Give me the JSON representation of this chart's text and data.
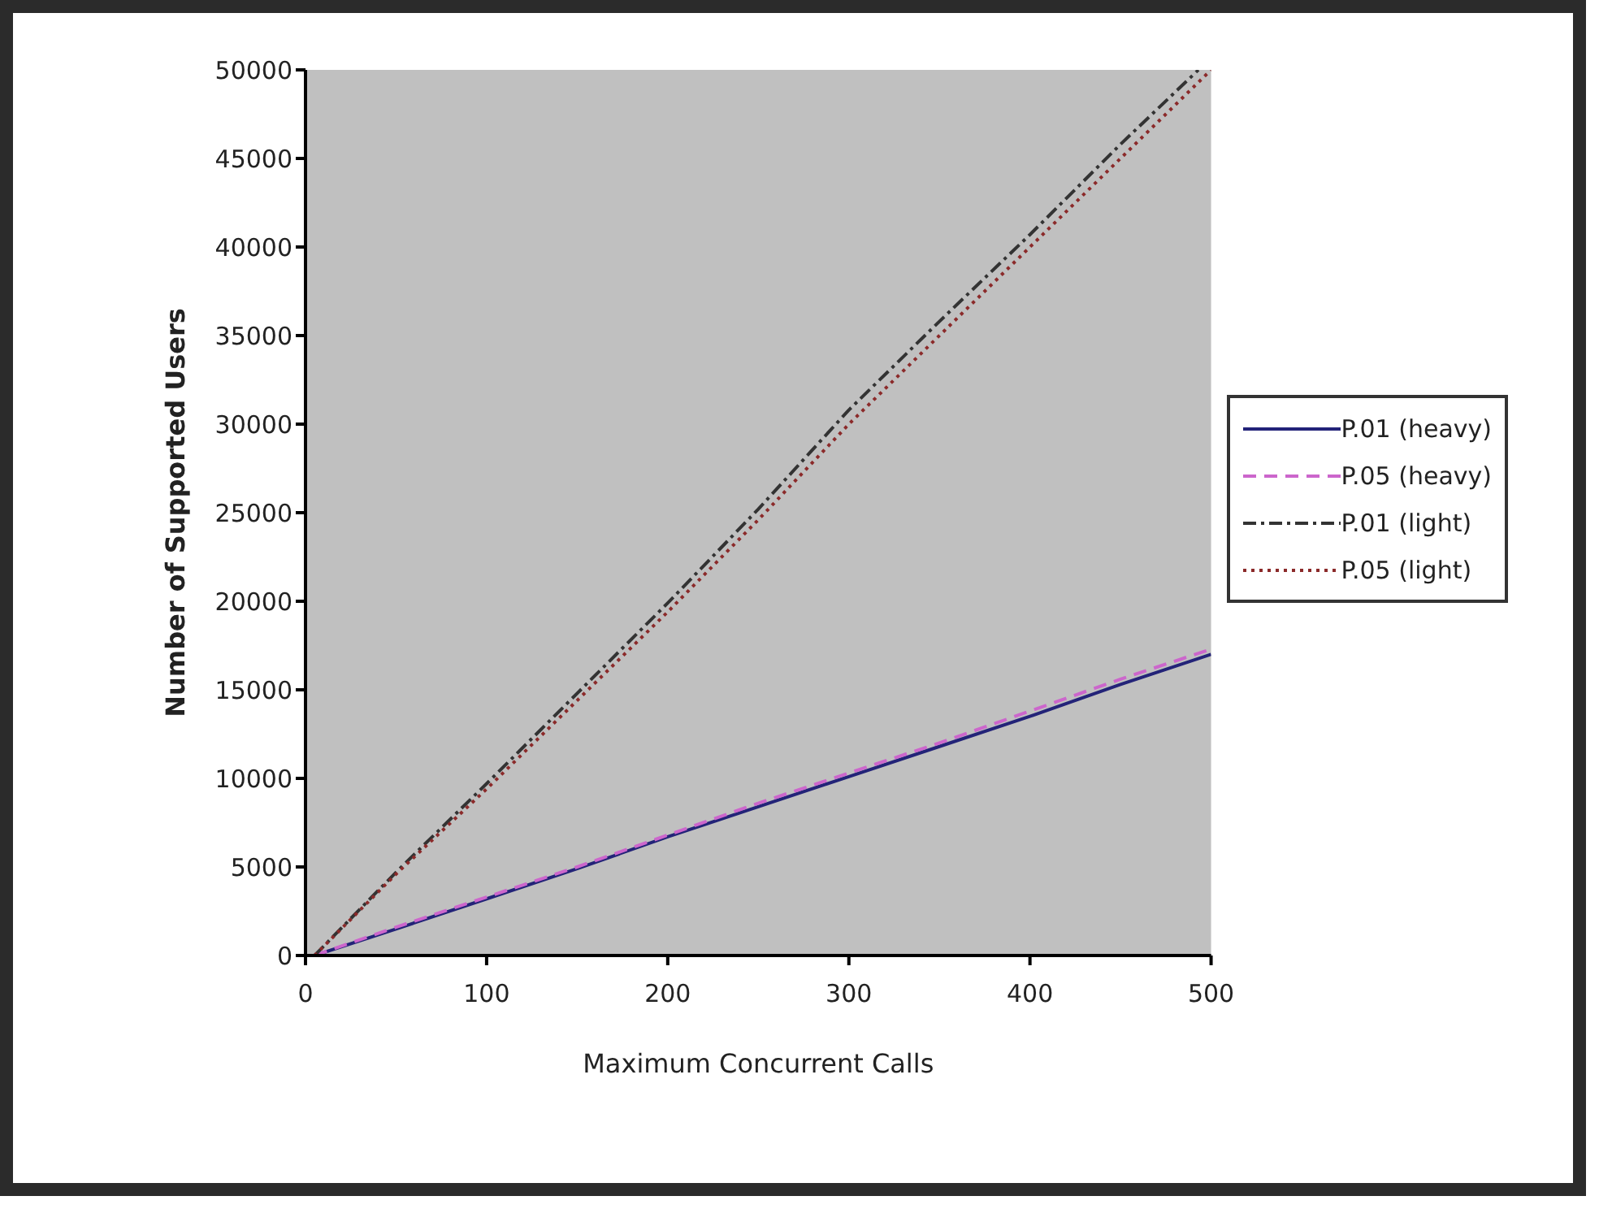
{
  "chart_data": {
    "type": "line",
    "xlabel": "Maximum Concurrent Calls",
    "ylabel": "Number of Supported Users",
    "x": [
      5,
      50,
      100,
      150,
      200,
      250,
      300,
      350,
      400,
      450,
      500
    ],
    "xlim": [
      0,
      500
    ],
    "xticks": [
      0,
      100,
      200,
      300,
      400,
      500
    ],
    "ylim": [
      0,
      50000
    ],
    "yticks": [
      0,
      5000,
      10000,
      15000,
      20000,
      25000,
      30000,
      35000,
      40000,
      45000,
      50000
    ],
    "grid": false,
    "legend": "right",
    "marker": "none",
    "series": [
      {
        "name": "P.01 (heavy)",
        "color": "#232378",
        "line_style": "solid",
        "values": [
          0,
          1500,
          3200,
          4900,
          6700,
          8400,
          10100,
          11800,
          13500,
          15300,
          17000
        ]
      },
      {
        "name": "P.05 (heavy)",
        "color": "#cc66cc",
        "line_style": "dashed",
        "values": [
          0,
          1600,
          3300,
          5000,
          6800,
          8600,
          10300,
          12000,
          13800,
          15600,
          17300
        ]
      },
      {
        "name": "P.01 (light)",
        "color": "#333333",
        "line_style": "dashdot",
        "x": [
          5,
          50,
          100,
          150,
          200,
          250,
          300,
          350,
          400,
          450,
          493
        ],
        "values": [
          0,
          4700,
          9700,
          14800,
          19900,
          25200,
          30800,
          35800,
          40700,
          45800,
          50000
        ]
      },
      {
        "name": "P.05 (light)",
        "color": "#8b2a2a",
        "line_style": "dotted",
        "values": [
          0,
          4600,
          9400,
          14400,
          19400,
          24600,
          30000,
          35000,
          40000,
          45000,
          50000
        ]
      }
    ]
  }
}
